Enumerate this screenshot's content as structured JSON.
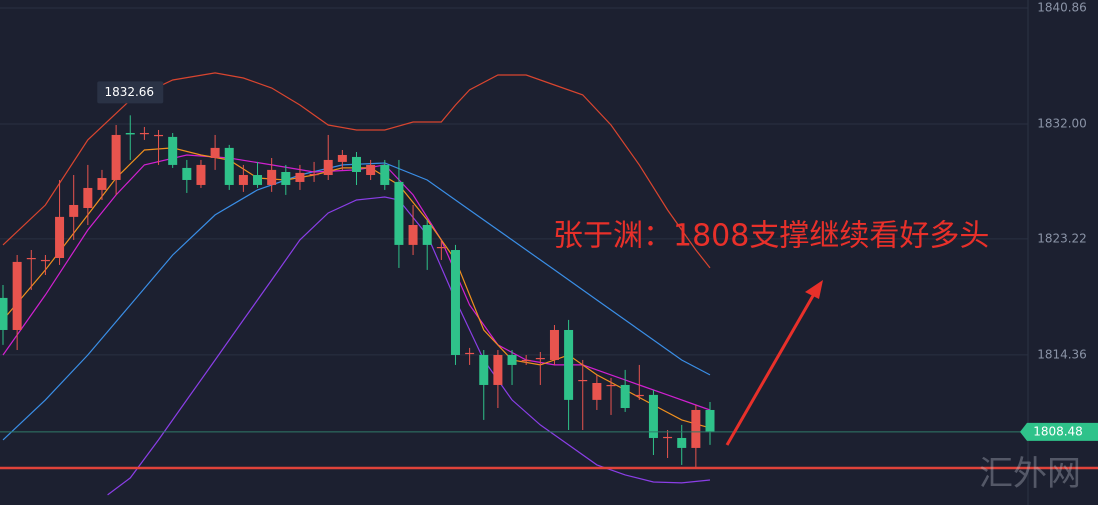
{
  "chart_data": {
    "type": "candlestick",
    "annotation": "张于渊：1808支撑继续看好多头",
    "watermark": "汇外网",
    "up_color": "#e8544e",
    "down_color": "#2fc28a",
    "ylim": [
      1802.89,
      1841.47
    ],
    "yticks": [
      1840.86,
      {
        "value": 1832,
        "label": "1832.00"
      },
      1823.22,
      1814.36
    ],
    "grid": true,
    "support_line": 1805.72,
    "support_color": "#e0433a",
    "open": [
      1818.71,
      1816.26,
      1821.76,
      1821.61,
      1821.76,
      1824.9,
      1825.58,
      1826.96,
      1827.72,
      1831.31,
      1831.31,
      1831.16,
      1831.01,
      1828.64,
      1827.34,
      1829.4,
      1830.17,
      1827.34,
      1828.1,
      1827.34,
      1828.33,
      1827.57,
      1828.18,
      1828.1,
      1829.1,
      1829.48,
      1828.1,
      1828.87,
      1827.57,
      1822.76,
      1824.28,
      1822.6,
      1822.37,
      1814.51,
      1814.35,
      1812.06,
      1814.35,
      1813.97,
      1814.12,
      1813.97,
      1816.26,
      1812.44,
      1810.92,
      1812.06,
      1812.06,
      1811.3,
      1811.3,
      1808.09,
      1808.01,
      1807.25,
      1810.15
    ],
    "high": [
      1819.7,
      1821.99,
      1822.37,
      1821.99,
      1827.72,
      1828.1,
      1828.87,
      1828.49,
      1831.92,
      1832.66,
      1831.77,
      1831.54,
      1831.31,
      1829.25,
      1829.25,
      1831.16,
      1830.4,
      1828.87,
      1829.1,
      1829.4,
      1828.87,
      1828.87,
      1829.1,
      1831.16,
      1830.01,
      1829.86,
      1829.25,
      1829.25,
      1829.25,
      1825.81,
      1824.67,
      1823.14,
      1822.76,
      1814.89,
      1814.73,
      1814.73,
      1814.73,
      1814.35,
      1814.58,
      1816.64,
      1817.03,
      1813.97,
      1812.83,
      1812.6,
      1813.21,
      1813.59,
      1811.68,
      1808.62,
      1809.01,
      1810.53,
      1810.76
    ],
    "low": [
      1815.12,
      1814.73,
      1819.32,
      1820.46,
      1821.23,
      1823.14,
      1824.28,
      1826.19,
      1826.58,
      1829.25,
      1830.78,
      1828.87,
      1828.64,
      1826.73,
      1827.11,
      1828.49,
      1826.96,
      1826.81,
      1827.11,
      1826.81,
      1826.58,
      1826.96,
      1827.57,
      1827.72,
      1828.49,
      1827.34,
      1827.72,
      1826.96,
      1821.0,
      1821.99,
      1820.85,
      1821.61,
      1813.59,
      1813.59,
      1809.39,
      1810.3,
      1812.06,
      1813.59,
      1812.06,
      1813.59,
      1808.62,
      1808.62,
      1810.15,
      1809.77,
      1810.0,
      1810.92,
      1806.71,
      1806.48,
      1805.95,
      1805.72,
      1807.48
    ],
    "close": [
      1816.26,
      1821.46,
      1821.76,
      1821.61,
      1824.9,
      1825.81,
      1827.11,
      1827.87,
      1831.16,
      1831.2,
      1831.31,
      1831.16,
      1828.87,
      1827.72,
      1828.87,
      1830.17,
      1827.34,
      1828.1,
      1827.34,
      1828.49,
      1827.34,
      1828.26,
      1828.18,
      1829.25,
      1829.63,
      1828.33,
      1828.87,
      1827.34,
      1822.76,
      1824.28,
      1822.76,
      1822.6,
      1814.35,
      1814.51,
      1812.06,
      1814.35,
      1813.59,
      1813.97,
      1814.12,
      1816.26,
      1810.92,
      1812.44,
      1812.21,
      1812.06,
      1810.3,
      1811.3,
      1808.01,
      1808.09,
      1807.25,
      1810.15,
      1808.48
    ],
    "series": [
      {
        "color": "#d9452f",
        "x": [
          0,
          3,
          6,
          9,
          12,
          15,
          17,
          19,
          21,
          23,
          25,
          27,
          29,
          31,
          32,
          33,
          35,
          37,
          39,
          41,
          43,
          45,
          47,
          49,
          50
        ],
        "values": [
          1822.76,
          1825.81,
          1830.78,
          1833.83,
          1835.36,
          1835.9,
          1835.51,
          1834.75,
          1833.45,
          1831.92,
          1831.54,
          1831.54,
          1832.15,
          1832.15,
          1833.45,
          1834.6,
          1835.74,
          1835.74,
          1834.98,
          1834.22,
          1831.92,
          1828.87,
          1825.43,
          1822.37,
          1821.0
        ]
      },
      {
        "color": "#8a3ee6",
        "x": [
          7.4,
          9,
          11,
          13,
          15,
          17,
          19,
          21,
          23,
          25,
          27,
          28,
          30,
          32,
          34,
          36,
          38,
          40,
          42,
          44,
          46,
          48,
          50
        ],
        "values": [
          1803.66,
          1804.96,
          1807.86,
          1810.92,
          1813.97,
          1817.03,
          1820.08,
          1823.14,
          1825.2,
          1826.19,
          1826.42,
          1826.19,
          1823.52,
          1818.55,
          1813.97,
          1810.92,
          1809.01,
          1807.48,
          1805.95,
          1805.19,
          1804.65,
          1804.58,
          1804.8
        ]
      },
      {
        "color": "#3a8ee6",
        "x": [
          0,
          3,
          6,
          9,
          12,
          15,
          18,
          21,
          24,
          27,
          30,
          33,
          36,
          39,
          42,
          45,
          48,
          50
        ],
        "values": [
          1807.86,
          1810.92,
          1814.35,
          1818.17,
          1821.99,
          1825.05,
          1826.96,
          1828.1,
          1828.87,
          1829.02,
          1827.72,
          1825.43,
          1823.14,
          1820.85,
          1818.55,
          1816.26,
          1813.97,
          1812.83
        ]
      },
      {
        "color": "#d020d0",
        "x": [
          0,
          3,
          6,
          8,
          10,
          13,
          16,
          19,
          22,
          25,
          27,
          29,
          31,
          33,
          35,
          37,
          39,
          41,
          43,
          45,
          47,
          49,
          50
        ],
        "values": [
          1814.35,
          1818.94,
          1823.9,
          1826.58,
          1828.87,
          1829.63,
          1829.4,
          1828.87,
          1828.33,
          1828.49,
          1828.87,
          1826.58,
          1823.14,
          1818.17,
          1815.12,
          1813.97,
          1813.59,
          1813.59,
          1812.83,
          1812.06,
          1811.3,
          1810.53,
          1810.15
        ]
      },
      {
        "color": "#f0901e",
        "x": [
          0,
          3,
          6,
          8,
          10,
          12,
          14,
          16,
          18,
          20,
          22,
          24,
          26,
          28,
          30,
          32,
          34,
          36,
          38,
          40,
          42,
          44,
          46,
          48,
          50
        ],
        "values": [
          1817.03,
          1820.85,
          1825.05,
          1827.87,
          1830.01,
          1830.17,
          1829.63,
          1829.25,
          1827.87,
          1827.72,
          1828.1,
          1828.64,
          1828.64,
          1827.34,
          1824.67,
          1821.61,
          1816.26,
          1813.97,
          1813.59,
          1814.35,
          1812.83,
          1811.68,
          1810.53,
          1809.39,
          1808.78
        ]
      }
    ]
  }
}
